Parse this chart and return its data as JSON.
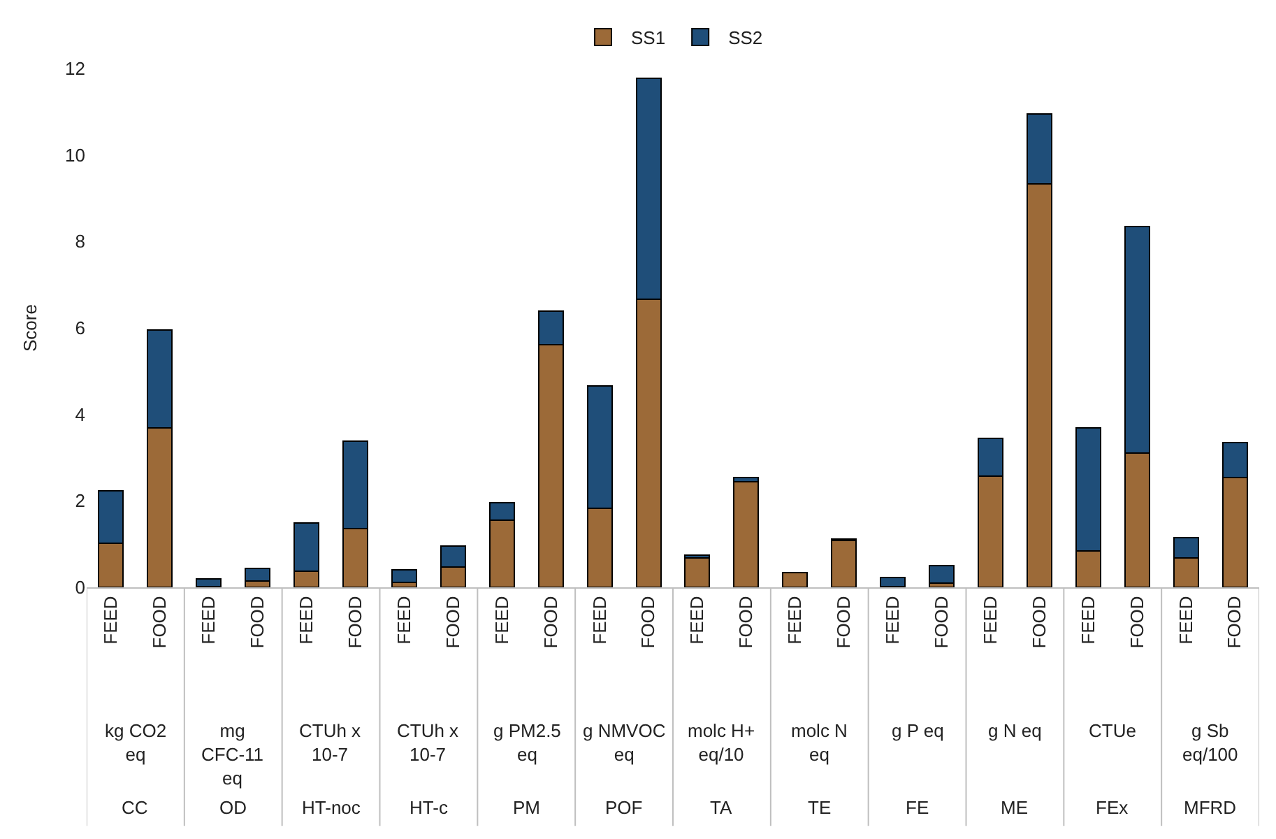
{
  "chart_data": {
    "type": "bar",
    "stacked": true,
    "ylabel": "Score",
    "legend": "top",
    "categories": [
      "FEED",
      "FOOD",
      "FEED",
      "FOOD",
      "FEED",
      "FOOD",
      "FEED",
      "FOOD",
      "FEED",
      "FOOD",
      "FEED",
      "FOOD",
      "FEED",
      "FOOD",
      "FEED",
      "FOOD",
      "FEED",
      "FOOD",
      "FEED",
      "FOOD",
      "FEED",
      "FOOD",
      "FEED",
      "FOOD"
    ],
    "series": [
      {
        "name": "SS1",
        "color": "#9c6a38",
        "values": [
          1.02,
          3.69,
          0.02,
          0.15,
          0.37,
          1.36,
          0.12,
          0.47,
          1.55,
          5.61,
          1.83,
          6.67,
          0.68,
          2.45,
          0.34,
          1.09,
          0.02,
          0.1,
          2.57,
          9.33,
          0.84,
          3.1,
          0.68,
          2.54
        ]
      },
      {
        "name": "SS2",
        "color": "#1f4e79",
        "values": [
          1.21,
          2.26,
          0.17,
          0.28,
          1.12,
          2.02,
          0.28,
          0.49,
          0.4,
          0.78,
          2.82,
          5.11,
          0.06,
          0.09,
          null,
          0.03,
          0.2,
          0.4,
          0.87,
          1.62,
          2.85,
          5.24,
          0.47,
          0.81
        ]
      }
    ],
    "ylim": [
      0,
      12
    ],
    "yticks": [
      0,
      2,
      4,
      6,
      8,
      10,
      12
    ],
    "annotations": [
      "kg CO2 eq",
      "mg CFC-11 eq",
      "CTUh x 10-7",
      "CTUh x 10-7",
      "g PM2.5 eq",
      "g NMVOC eq",
      "molc H+ eq/10",
      "molc N eq",
      "g P eq",
      "g N eq",
      "CTUe",
      "g Sb eq/100",
      "CC",
      "OD",
      "HT-noc",
      "HT-c",
      "PM",
      "POF",
      "TA",
      "TE",
      "FE",
      "ME",
      "FEx",
      "MFRD"
    ]
  }
}
